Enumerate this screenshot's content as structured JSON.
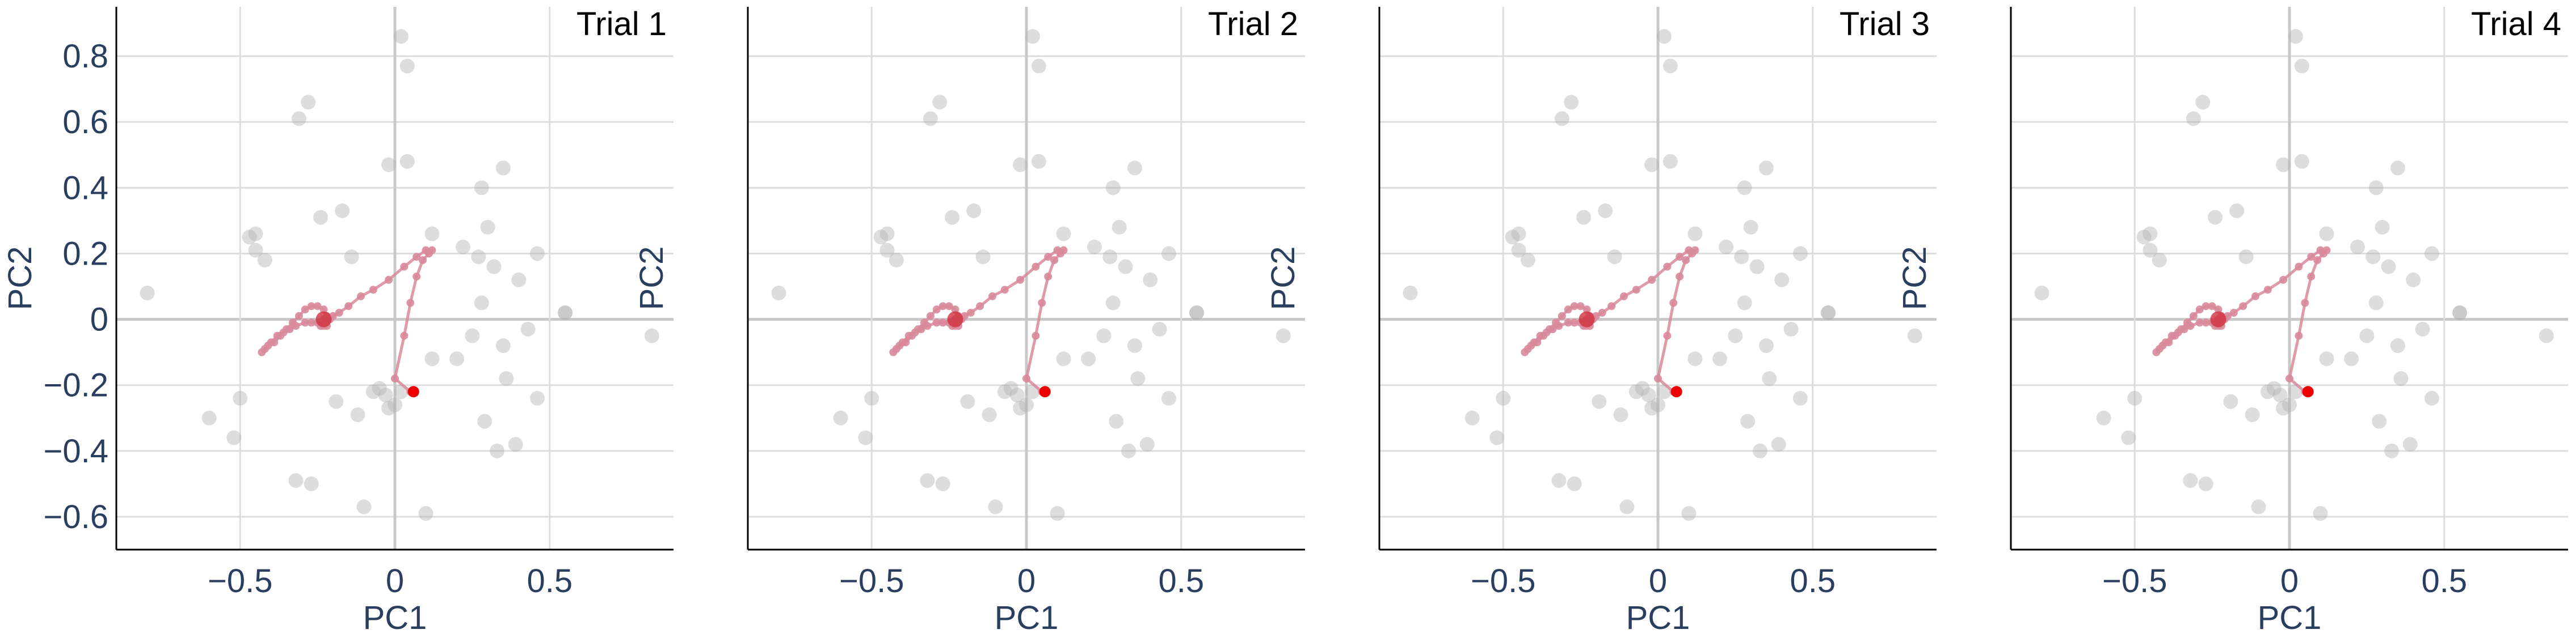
{
  "chart_data": {
    "type": "scatter",
    "layout": "1x4 panels with shared axes",
    "xlabel": "PC1",
    "ylabel": "PC2",
    "xlim": [
      -0.9,
      0.9
    ],
    "ylim": [
      -0.7,
      0.95
    ],
    "x_ticks": [
      -0.5,
      0,
      0.5
    ],
    "x_tick_labels": [
      "−0.5",
      "0",
      "0.5"
    ],
    "y_ticks": [
      -0.6,
      -0.4,
      -0.2,
      0,
      0.2,
      0.4,
      0.6,
      0.8
    ],
    "y_tick_labels": [
      "−0.6",
      "−0.4",
      "−0.2",
      "0",
      "0.2",
      "0.4",
      "0.6",
      "0.8"
    ],
    "grid": true,
    "colors": {
      "background_points": "#b4b4b4",
      "trajectory": "#d88a9a",
      "final_point": "#ee0000",
      "grid": "#dddddd",
      "zero_line": "#c8c8c8",
      "text": "#2a3f5f"
    },
    "panels": [
      {
        "title": "Trial 1"
      },
      {
        "title": "Trial 2"
      },
      {
        "title": "Trial 3"
      },
      {
        "title": "Trial 4"
      }
    ],
    "background_points": [
      [
        0.02,
        0.86
      ],
      [
        0.04,
        0.77
      ],
      [
        -0.31,
        0.61
      ],
      [
        -0.28,
        0.66
      ],
      [
        -0.02,
        0.47
      ],
      [
        0.04,
        0.48
      ],
      [
        0.35,
        0.46
      ],
      [
        0.28,
        0.4
      ],
      [
        -0.24,
        0.31
      ],
      [
        -0.17,
        0.33
      ],
      [
        -0.45,
        0.26
      ],
      [
        -0.47,
        0.25
      ],
      [
        -0.45,
        0.21
      ],
      [
        -0.42,
        0.18
      ],
      [
        -0.14,
        0.19
      ],
      [
        0.12,
        0.26
      ],
      [
        0.3,
        0.28
      ],
      [
        0.22,
        0.22
      ],
      [
        0.27,
        0.19
      ],
      [
        0.32,
        0.16
      ],
      [
        0.46,
        0.2
      ],
      [
        0.4,
        0.12
      ],
      [
        0.28,
        0.05
      ],
      [
        0.55,
        0.02
      ],
      [
        -0.8,
        0.08
      ],
      [
        0.83,
        -0.05
      ],
      [
        0.43,
        -0.03
      ],
      [
        0.35,
        -0.08
      ],
      [
        0.25,
        -0.05
      ],
      [
        0.12,
        -0.12
      ],
      [
        0.2,
        -0.12
      ],
      [
        0.36,
        -0.18
      ],
      [
        0.46,
        -0.24
      ],
      [
        0.39,
        -0.38
      ],
      [
        0.29,
        -0.31
      ],
      [
        0.33,
        -0.4
      ],
      [
        -0.05,
        -0.21
      ],
      [
        -0.07,
        -0.22
      ],
      [
        0.02,
        -0.22
      ],
      [
        0.0,
        -0.26
      ],
      [
        -0.02,
        -0.27
      ],
      [
        -0.12,
        -0.29
      ],
      [
        -0.19,
        -0.25
      ],
      [
        -0.5,
        -0.24
      ],
      [
        -0.6,
        -0.3
      ],
      [
        -0.52,
        -0.36
      ],
      [
        -0.32,
        -0.49
      ],
      [
        -0.27,
        -0.5
      ],
      [
        -0.1,
        -0.57
      ],
      [
        0.1,
        -0.59
      ],
      [
        0.55,
        0.02
      ],
      [
        -0.03,
        -0.23
      ]
    ],
    "trajectory": [
      [
        0.05,
        -0.22
      ],
      [
        0.0,
        -0.18
      ],
      [
        0.03,
        -0.05
      ],
      [
        0.05,
        0.05
      ],
      [
        0.07,
        0.13
      ],
      [
        0.09,
        0.18
      ],
      [
        0.11,
        0.2
      ],
      [
        0.12,
        0.21
      ],
      [
        0.1,
        0.21
      ],
      [
        0.07,
        0.19
      ],
      [
        0.03,
        0.16
      ],
      [
        -0.02,
        0.12
      ],
      [
        -0.07,
        0.09
      ],
      [
        -0.11,
        0.07
      ],
      [
        -0.15,
        0.04
      ],
      [
        -0.18,
        0.02
      ],
      [
        -0.2,
        0.01
      ],
      [
        -0.21,
        0.0
      ],
      [
        -0.22,
        0.01
      ],
      [
        -0.23,
        0.03
      ],
      [
        -0.25,
        0.04
      ],
      [
        -0.27,
        0.04
      ],
      [
        -0.29,
        0.03
      ],
      [
        -0.31,
        0.01
      ],
      [
        -0.33,
        -0.01
      ],
      [
        -0.35,
        -0.03
      ],
      [
        -0.37,
        -0.05
      ],
      [
        -0.39,
        -0.07
      ],
      [
        -0.41,
        -0.08
      ],
      [
        -0.43,
        -0.1
      ],
      [
        -0.42,
        -0.09
      ],
      [
        -0.4,
        -0.07
      ],
      [
        -0.38,
        -0.05
      ],
      [
        -0.36,
        -0.04
      ],
      [
        -0.34,
        -0.03
      ],
      [
        -0.32,
        -0.02
      ],
      [
        -0.29,
        -0.01
      ],
      [
        -0.27,
        -0.01
      ],
      [
        -0.25,
        -0.01
      ],
      [
        -0.24,
        -0.02
      ],
      [
        -0.23,
        -0.02
      ],
      [
        -0.23,
        -0.01
      ],
      [
        -0.22,
        -0.02
      ],
      [
        -0.23,
        0.0
      ]
    ],
    "final_point": [
      0.06,
      -0.22
    ]
  }
}
